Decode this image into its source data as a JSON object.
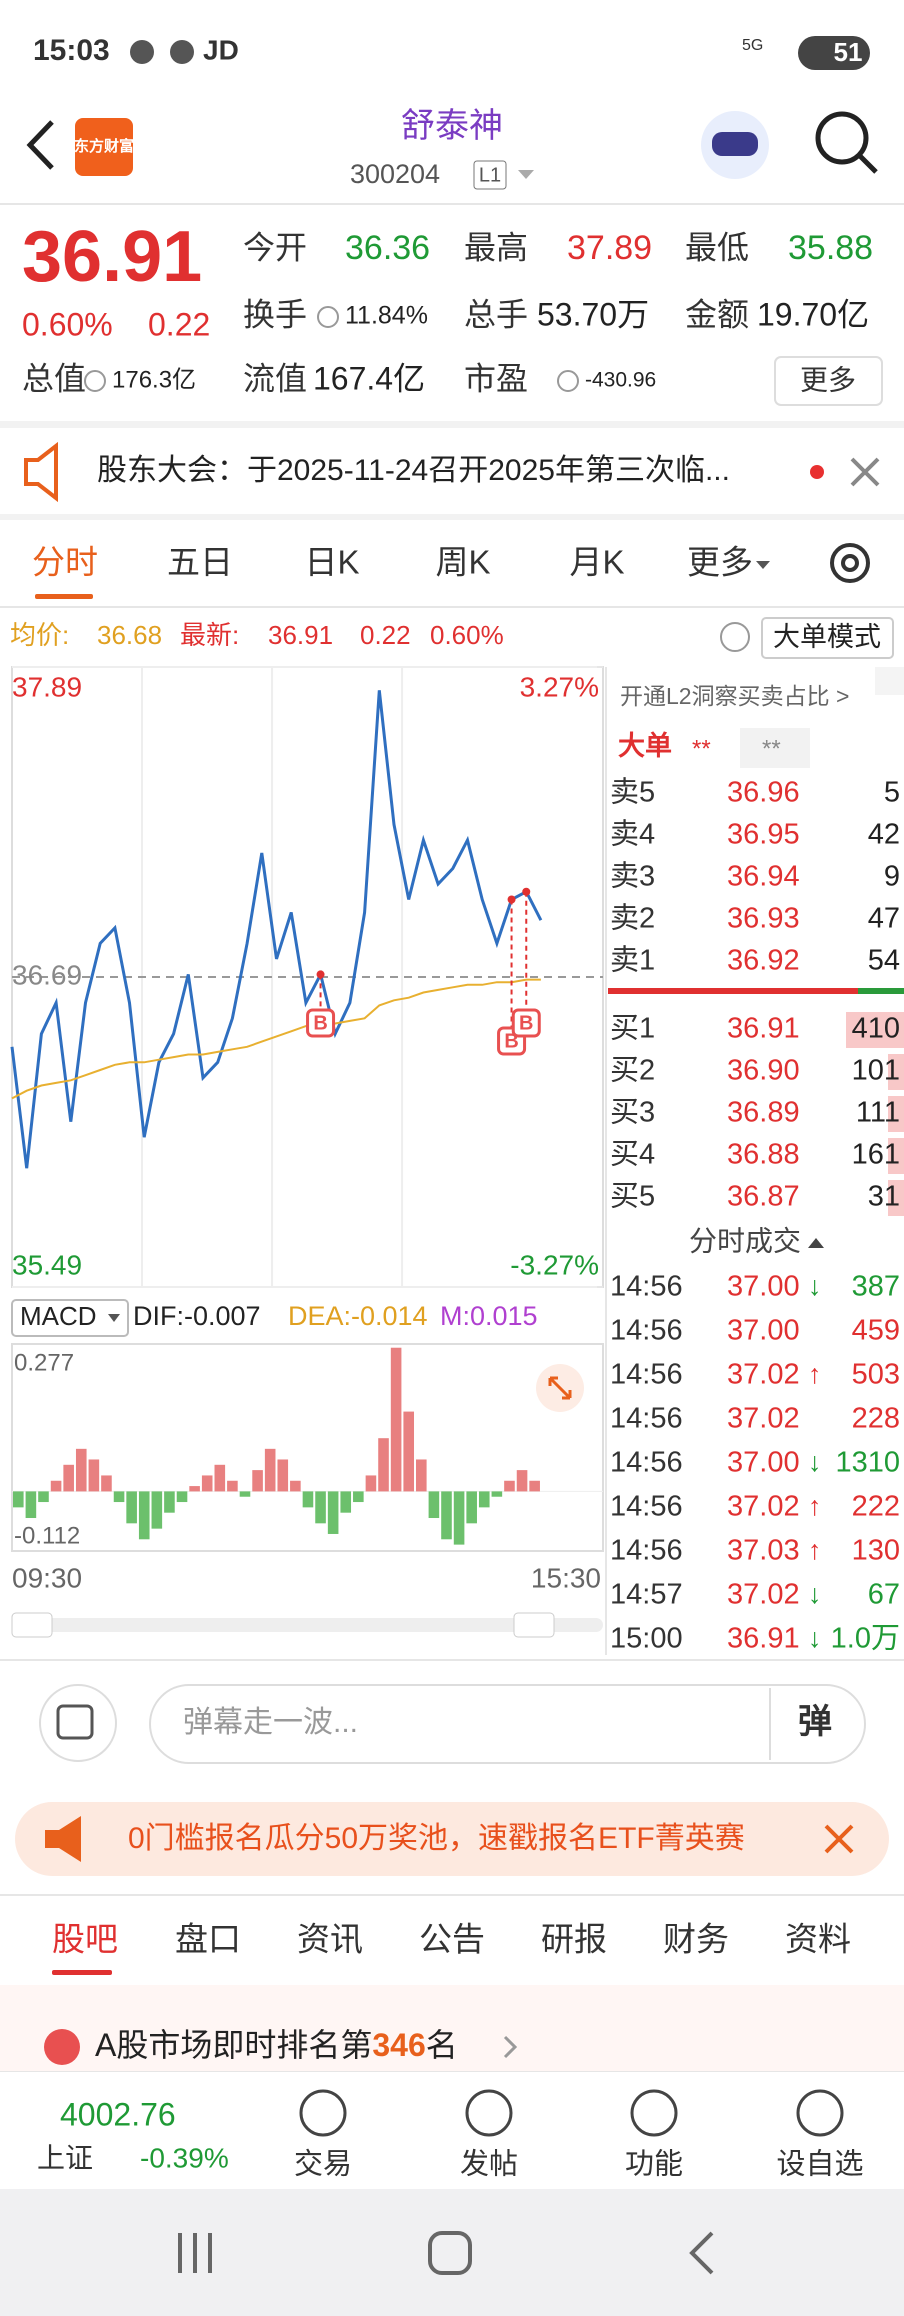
{
  "status": {
    "time": "15:03",
    "carrier": "JD",
    "network": "5G",
    "battery": "51"
  },
  "header": {
    "logo": "东方财富",
    "title": "舒泰神",
    "code": "300204",
    "level": "L1"
  },
  "quote": {
    "price": "36.91",
    "pct": "0.60%",
    "change": "0.22",
    "more": "更多",
    "stats": [
      {
        "label": "今开",
        "value": "36.36"
      },
      {
        "label": "最高",
        "value": "37.89"
      },
      {
        "label": "最低",
        "value": "35.88"
      },
      {
        "label": "换手",
        "value": "11.84%"
      },
      {
        "label": "总手",
        "value": "53.70万"
      },
      {
        "label": "金额",
        "value": "19.70亿"
      },
      {
        "label": "总值",
        "value": "176.3亿"
      },
      {
        "label": "流值",
        "value": "167.4亿"
      },
      {
        "label": "市盈",
        "value": "-430.96"
      }
    ]
  },
  "notice": {
    "text": "股东大会：于2025-11-24召开2025年第三次临..."
  },
  "tabs": [
    "分时",
    "五日",
    "日K",
    "周K",
    "月K",
    "更多"
  ],
  "info": {
    "avg_label": "均价:",
    "avg": "36.68",
    "latest_label": "最新:",
    "latest": "36.91",
    "change": "0.22",
    "pct": "0.60%",
    "mode": "大单模式"
  },
  "chart_data": [
    {
      "type": "line",
      "ylim": [
        35.49,
        37.89
      ],
      "yticks": [
        35.49,
        36.69,
        37.89
      ],
      "y2lim": [
        -3.27,
        3.27
      ],
      "y2ticks": [
        {
          "value": -3.27,
          "label": "-3.27%"
        },
        {
          "value": 3.27,
          "label": "3.27%"
        }
      ],
      "x_labels": [
        "09:30",
        "15:30"
      ],
      "annotations": [
        "B",
        "B",
        "B"
      ],
      "series": [
        {
          "color": "#2f6fc0",
          "values": [
            36.42,
            35.95,
            36.47,
            36.59,
            36.13,
            36.59,
            36.82,
            36.88,
            36.59,
            36.07,
            36.36,
            36.47,
            36.7,
            36.3,
            36.36,
            36.53,
            36.82,
            37.17,
            36.76,
            36.94,
            36.59,
            36.7,
            36.47,
            36.59,
            36.94,
            37.8,
            37.28,
            36.99,
            37.22,
            37.05,
            37.11,
            37.22,
            36.99,
            36.82,
            36.99,
            37.02,
            36.91
          ]
        },
        {
          "color": "#e8b030",
          "values": [
            36.22,
            36.25,
            36.27,
            36.28,
            36.29,
            36.31,
            36.33,
            36.35,
            36.36,
            36.36,
            36.37,
            36.38,
            36.39,
            36.39,
            36.4,
            36.41,
            36.42,
            36.44,
            36.46,
            36.48,
            36.5,
            36.51,
            36.51,
            36.52,
            36.53,
            36.58,
            36.6,
            36.61,
            36.63,
            36.64,
            36.65,
            36.66,
            36.66,
            36.67,
            36.67,
            36.68,
            36.68
          ]
        }
      ]
    },
    {
      "type": "bar",
      "indicator": "MACD",
      "legend": [
        "DIF:-0.007",
        "DEA:-0.014",
        "M:0.015"
      ],
      "ylim": [
        -0.112,
        0.277
      ],
      "yticks": [
        -0.112,
        0.277
      ],
      "values": [
        -0.03,
        -0.05,
        -0.02,
        0.02,
        0.05,
        0.08,
        0.06,
        0.03,
        -0.02,
        -0.06,
        -0.09,
        -0.07,
        -0.04,
        -0.02,
        0.01,
        0.03,
        0.05,
        0.02,
        -0.01,
        0.04,
        0.08,
        0.06,
        0.02,
        -0.03,
        -0.06,
        -0.08,
        -0.04,
        -0.02,
        0.03,
        0.1,
        0.27,
        0.15,
        0.06,
        -0.05,
        -0.09,
        -0.1,
        -0.06,
        -0.03,
        -0.01,
        0.02,
        0.04,
        0.02
      ]
    }
  ],
  "orderbook": {
    "link": "开通L2洞察买卖占比 >",
    "big": "大单",
    "stars": [
      "**",
      "**"
    ],
    "sells": [
      {
        "label": "卖5",
        "price": "36.96",
        "vol": "5"
      },
      {
        "label": "卖4",
        "price": "36.95",
        "vol": "42"
      },
      {
        "label": "卖3",
        "price": "36.94",
        "vol": "9"
      },
      {
        "label": "卖2",
        "price": "36.93",
        "vol": "47"
      },
      {
        "label": "卖1",
        "price": "36.92",
        "vol": "54"
      }
    ],
    "buys": [
      {
        "label": "买1",
        "price": "36.91",
        "vol": "410"
      },
      {
        "label": "买2",
        "price": "36.90",
        "vol": "101"
      },
      {
        "label": "买3",
        "price": "36.89",
        "vol": "111"
      },
      {
        "label": "买4",
        "price": "36.88",
        "vol": "161"
      },
      {
        "label": "买5",
        "price": "36.87",
        "vol": "31"
      }
    ]
  },
  "trades": {
    "title": "分时成交",
    "rows": [
      {
        "time": "14:56",
        "price": "37.00",
        "dir": "↓",
        "vol": "387"
      },
      {
        "time": "14:56",
        "price": "37.00",
        "dir": "",
        "vol": "459"
      },
      {
        "time": "14:56",
        "price": "37.02",
        "dir": "↑",
        "vol": "503"
      },
      {
        "time": "14:56",
        "price": "37.02",
        "dir": "",
        "vol": "228"
      },
      {
        "time": "14:56",
        "price": "37.00",
        "dir": "↓",
        "vol": "1310"
      },
      {
        "time": "14:56",
        "price": "37.02",
        "dir": "↑",
        "vol": "222"
      },
      {
        "time": "14:56",
        "price": "37.03",
        "dir": "↑",
        "vol": "130"
      },
      {
        "time": "14:57",
        "price": "37.02",
        "dir": "↓",
        "vol": "67"
      },
      {
        "time": "15:00",
        "price": "36.91",
        "dir": "↓",
        "vol": "1.0万"
      }
    ]
  },
  "danmaku": {
    "placeholder": "弹幕走一波...",
    "button": "弹"
  },
  "banner": {
    "text": "0门槛报名瓜分50万奖池，速戳报名ETF菁英赛"
  },
  "tabs2": [
    "股吧",
    "盘口",
    "资讯",
    "公告",
    "研报",
    "财务",
    "资料"
  ],
  "rank": {
    "prefix": "A股市场即时排名第",
    "rank": "346",
    "suffix": "名"
  },
  "bottom": {
    "index_value": "4002.76",
    "index_name": "上证",
    "index_pct": "-0.39%",
    "actions": [
      "交易",
      "发帖",
      "功能",
      "设自选"
    ]
  }
}
